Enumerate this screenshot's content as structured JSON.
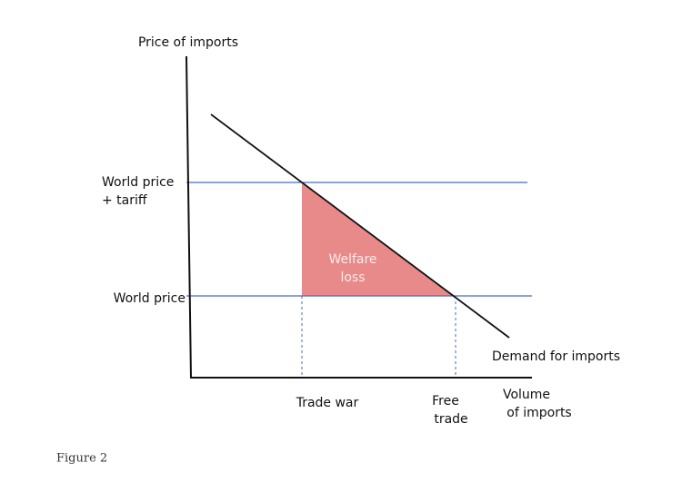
{
  "diagram": {
    "y_axis_label": "Price of imports",
    "world_price_tariff": [
      "World price",
      "+ tariff"
    ],
    "world_price": "World price",
    "area_label": [
      "Welfare",
      "loss"
    ],
    "curve_label": "Demand for imports",
    "trade_war": "Trade war",
    "free_trade": [
      "Free",
      "trade"
    ],
    "x_axis_label": [
      "Volume",
      "of imports"
    ]
  },
  "caption": "Figure 2"
}
